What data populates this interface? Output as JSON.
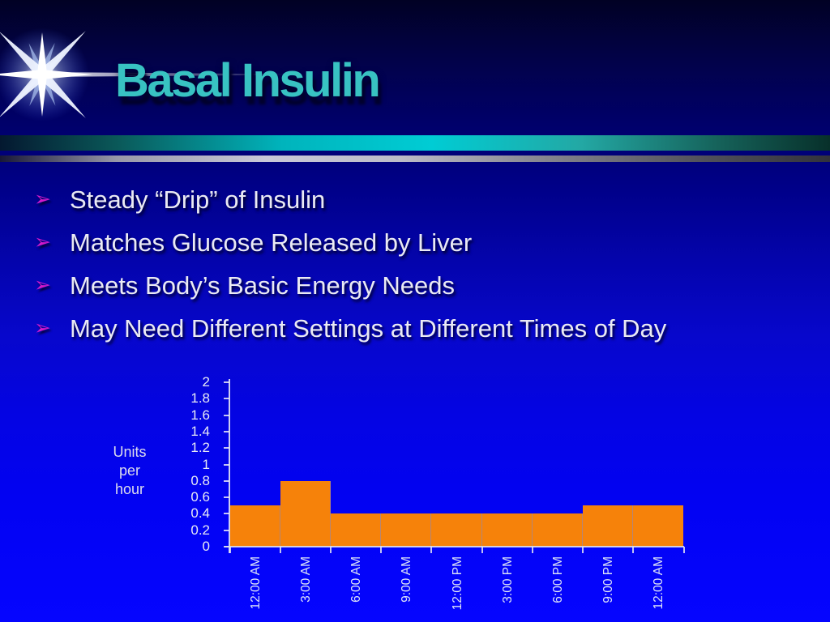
{
  "slide": {
    "title": "Basal Insulin",
    "bullet_marker": "➢",
    "bullets": [
      "Steady “Drip” of Insulin",
      "Matches Glucose Released by Liver",
      "Meets Body’s Basic Energy Needs",
      "May Need Different Settings at Different Times of Day"
    ],
    "colors": {
      "background_top": "#010124",
      "background_bottom": "#0505ff",
      "title": "#38c2c2",
      "bullet_marker": "#d219cc",
      "bullet_text": "#eaeaf4",
      "divider_teal": "#00ccd4",
      "divider_silver": "#c8c8d8",
      "bar": "#f6820a",
      "axis": "#e6e8f4"
    }
  },
  "chart_data": {
    "type": "bar",
    "title": "",
    "xlabel": "",
    "ylabel": "Units per hour",
    "ylabel_lines": [
      "Units",
      "per",
      "hour"
    ],
    "categories": [
      "12:00 AM",
      "3:00 AM",
      "6:00 AM",
      "9:00 AM",
      "12:00 PM",
      "3:00 PM",
      "6:00 PM",
      "9:00 PM",
      "12:00 AM"
    ],
    "values": [
      0.5,
      0.8,
      0.4,
      0.4,
      0.4,
      0.4,
      0.4,
      0.5,
      0.5
    ],
    "ylim": [
      0,
      2
    ],
    "ytick_labels": [
      "2",
      "1.8",
      "1.6",
      "1.4",
      "1.2",
      "1",
      "0.8",
      "0.6",
      "0.4",
      "0.2",
      "0"
    ],
    "yticks": [
      2,
      1.8,
      1.6,
      1.4,
      1.2,
      1,
      0.8,
      0.6,
      0.4,
      0.2,
      0
    ],
    "grid": false,
    "legend": null,
    "bar_color": "#f6820a",
    "bar_gap": 0,
    "x_label_rotation": -90
  }
}
